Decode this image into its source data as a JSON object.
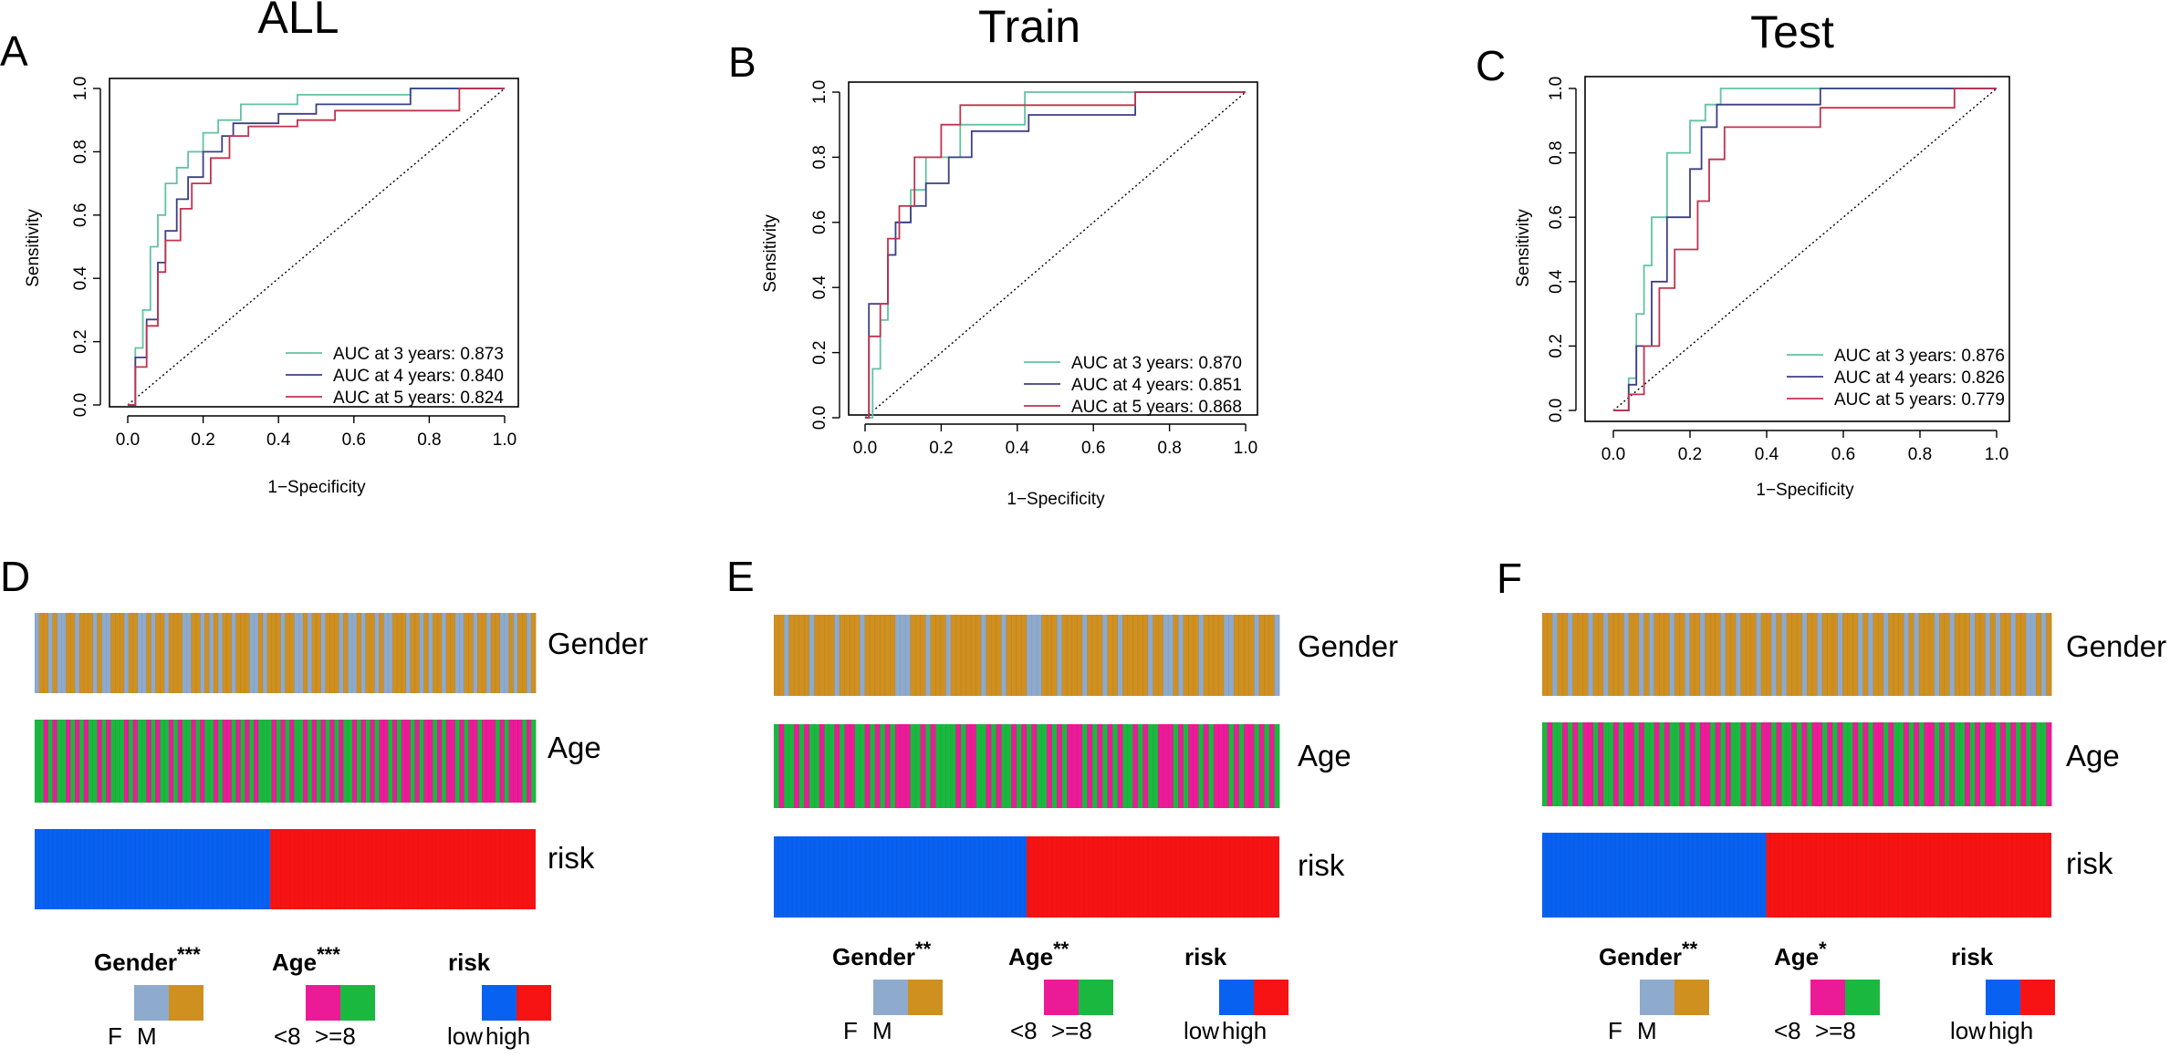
{
  "figure": {
    "colors": {
      "auc3": "#61C3A2",
      "auc4": "#3B3F87",
      "auc5": "#C1324E",
      "gender_F": "#8EAACC",
      "gender_M": "#CF9020",
      "age_lt8": "#EB1B98",
      "age_ge8": "#1BB83F",
      "risk_low": "#0961F2",
      "risk_high": "#F71313"
    }
  },
  "chart_data": [
    {
      "type": "line",
      "subtype": "time-dependent ROC",
      "panel_letter": "A",
      "title": "ALL",
      "xlabel": "1−Specificity",
      "ylabel": "Sensitivity",
      "xlim": [
        0,
        1
      ],
      "ylim": [
        0,
        1
      ],
      "x_ticks": [
        "0.0",
        "0.2",
        "0.4",
        "0.6",
        "0.8",
        "1.0"
      ],
      "y_ticks": [
        "0.0",
        "0.2",
        "0.4",
        "0.6",
        "0.8",
        "1.0"
      ],
      "reference_line": "diagonal dotted",
      "legend_position": "bottom-right",
      "legend": [
        "AUC at 3 years: 0.873",
        "AUC at 4 years: 0.840",
        "AUC at 5 years: 0.824"
      ],
      "series": [
        {
          "name": "AUC at 3 years",
          "auc": 0.873,
          "color_key": "auc3",
          "x": [
            0,
            0.02,
            0.02,
            0.04,
            0.04,
            0.06,
            0.06,
            0.08,
            0.08,
            0.1,
            0.1,
            0.13,
            0.13,
            0.16,
            0.16,
            0.2,
            0.2,
            0.24,
            0.24,
            0.3,
            0.3,
            0.45,
            0.45,
            0.75,
            0.75,
            1.0
          ],
          "y": [
            0,
            0,
            0.18,
            0.18,
            0.3,
            0.3,
            0.5,
            0.5,
            0.6,
            0.6,
            0.7,
            0.7,
            0.75,
            0.75,
            0.8,
            0.8,
            0.86,
            0.86,
            0.9,
            0.9,
            0.95,
            0.95,
            0.98,
            0.98,
            1.0,
            1.0
          ]
        },
        {
          "name": "AUC at 4 years",
          "auc": 0.84,
          "color_key": "auc4",
          "x": [
            0,
            0.02,
            0.02,
            0.05,
            0.05,
            0.08,
            0.08,
            0.1,
            0.1,
            0.13,
            0.13,
            0.16,
            0.16,
            0.2,
            0.2,
            0.25,
            0.25,
            0.28,
            0.28,
            0.4,
            0.4,
            0.5,
            0.5,
            0.75,
            0.75,
            1.0
          ],
          "y": [
            0,
            0,
            0.15,
            0.15,
            0.27,
            0.27,
            0.45,
            0.45,
            0.55,
            0.55,
            0.65,
            0.65,
            0.72,
            0.72,
            0.8,
            0.8,
            0.85,
            0.85,
            0.89,
            0.89,
            0.92,
            0.92,
            0.95,
            0.95,
            1.0,
            1.0
          ]
        },
        {
          "name": "AUC at 5 years",
          "auc": 0.824,
          "color_key": "auc5",
          "x": [
            0,
            0.02,
            0.02,
            0.05,
            0.05,
            0.08,
            0.08,
            0.1,
            0.1,
            0.14,
            0.14,
            0.17,
            0.17,
            0.22,
            0.22,
            0.27,
            0.27,
            0.32,
            0.32,
            0.45,
            0.45,
            0.55,
            0.55,
            0.88,
            0.88,
            1.0
          ],
          "y": [
            0,
            0,
            0.12,
            0.12,
            0.25,
            0.25,
            0.42,
            0.42,
            0.52,
            0.52,
            0.62,
            0.62,
            0.7,
            0.7,
            0.78,
            0.78,
            0.85,
            0.85,
            0.88,
            0.88,
            0.9,
            0.9,
            0.93,
            0.93,
            1.0,
            1.0
          ]
        }
      ]
    },
    {
      "type": "line",
      "subtype": "time-dependent ROC",
      "panel_letter": "B",
      "title": "Train",
      "xlabel": "1−Specificity",
      "ylabel": "Sensitivity",
      "xlim": [
        0,
        1
      ],
      "ylim": [
        0,
        1
      ],
      "x_ticks": [
        "0.0",
        "0.2",
        "0.4",
        "0.6",
        "0.8",
        "1.0"
      ],
      "y_ticks": [
        "0.0",
        "0.2",
        "0.4",
        "0.6",
        "0.8",
        "1.0"
      ],
      "reference_line": "diagonal dotted",
      "legend_position": "bottom-right",
      "legend": [
        "AUC at 3 years: 0.870",
        "AUC at 4 years: 0.851",
        "AUC at 5 years: 0.868"
      ],
      "series": [
        {
          "name": "AUC at 3 years",
          "auc": 0.87,
          "color_key": "auc3",
          "x": [
            0,
            0.02,
            0.02,
            0.04,
            0.04,
            0.06,
            0.06,
            0.08,
            0.08,
            0.12,
            0.12,
            0.16,
            0.16,
            0.25,
            0.25,
            0.42,
            0.42,
            1.0
          ],
          "y": [
            0,
            0,
            0.15,
            0.15,
            0.3,
            0.3,
            0.5,
            0.5,
            0.6,
            0.6,
            0.7,
            0.7,
            0.8,
            0.8,
            0.9,
            0.9,
            1.0,
            1.0
          ]
        },
        {
          "name": "AUC at 4 years",
          "auc": 0.851,
          "color_key": "auc4",
          "x": [
            0,
            0.01,
            0.01,
            0.06,
            0.06,
            0.08,
            0.08,
            0.12,
            0.12,
            0.16,
            0.16,
            0.22,
            0.22,
            0.28,
            0.28,
            0.43,
            0.43,
            0.71,
            0.71,
            1.0
          ],
          "y": [
            0,
            0,
            0.35,
            0.35,
            0.5,
            0.5,
            0.6,
            0.6,
            0.65,
            0.65,
            0.72,
            0.72,
            0.8,
            0.8,
            0.88,
            0.88,
            0.93,
            0.93,
            1.0,
            1.0
          ]
        },
        {
          "name": "AUC at 5 years",
          "auc": 0.868,
          "color_key": "auc5",
          "x": [
            0,
            0.01,
            0.01,
            0.04,
            0.04,
            0.06,
            0.06,
            0.09,
            0.09,
            0.13,
            0.13,
            0.2,
            0.2,
            0.25,
            0.25,
            0.71,
            0.71,
            1.0
          ],
          "y": [
            0,
            0,
            0.25,
            0.25,
            0.35,
            0.35,
            0.55,
            0.55,
            0.65,
            0.65,
            0.8,
            0.8,
            0.9,
            0.9,
            0.96,
            0.96,
            1.0,
            1.0
          ]
        }
      ]
    },
    {
      "type": "line",
      "subtype": "time-dependent ROC",
      "panel_letter": "C",
      "title": "Test",
      "xlabel": "1−Specificity",
      "ylabel": "Sensitivity",
      "xlim": [
        0,
        1
      ],
      "ylim": [
        0,
        1
      ],
      "x_ticks": [
        "0.0",
        "0.2",
        "0.4",
        "0.6",
        "0.8",
        "1.0"
      ],
      "y_ticks": [
        "0.0",
        "0.2",
        "0.4",
        "0.6",
        "0.8",
        "1.0"
      ],
      "reference_line": "diagonal dotted",
      "legend_position": "bottom-right",
      "legend": [
        "AUC at 3 years: 0.876",
        "AUC at 4 years: 0.826",
        "AUC at 5 years: 0.779"
      ],
      "series": [
        {
          "name": "AUC at 3 years",
          "auc": 0.876,
          "color_key": "auc3",
          "x": [
            0,
            0.04,
            0.04,
            0.06,
            0.06,
            0.08,
            0.08,
            0.1,
            0.1,
            0.14,
            0.14,
            0.2,
            0.2,
            0.24,
            0.24,
            0.28,
            0.28,
            1.0
          ],
          "y": [
            0,
            0,
            0.1,
            0.1,
            0.3,
            0.3,
            0.45,
            0.45,
            0.6,
            0.6,
            0.8,
            0.8,
            0.9,
            0.9,
            0.95,
            0.95,
            1.0,
            1.0
          ]
        },
        {
          "name": "AUC at 4 years",
          "auc": 0.826,
          "color_key": "auc4",
          "x": [
            0,
            0.04,
            0.04,
            0.06,
            0.06,
            0.1,
            0.1,
            0.14,
            0.14,
            0.2,
            0.2,
            0.23,
            0.23,
            0.27,
            0.27,
            0.54,
            0.54,
            1.0
          ],
          "y": [
            0,
            0,
            0.08,
            0.08,
            0.2,
            0.2,
            0.4,
            0.4,
            0.6,
            0.6,
            0.75,
            0.75,
            0.88,
            0.88,
            0.95,
            0.95,
            1.0,
            1.0
          ]
        },
        {
          "name": "AUC at 5 years",
          "auc": 0.779,
          "color_key": "auc5",
          "x": [
            0,
            0.04,
            0.04,
            0.08,
            0.08,
            0.12,
            0.12,
            0.16,
            0.16,
            0.22,
            0.22,
            0.25,
            0.25,
            0.29,
            0.29,
            0.54,
            0.54,
            0.89,
            0.89,
            1.0
          ],
          "y": [
            0,
            0,
            0.05,
            0.05,
            0.2,
            0.2,
            0.38,
            0.38,
            0.5,
            0.5,
            0.65,
            0.65,
            0.78,
            0.78,
            0.88,
            0.88,
            0.94,
            0.94,
            1.0,
            1.0
          ]
        }
      ]
    },
    {
      "type": "heatmap",
      "subtype": "clinical annotation tracks",
      "panel_letter": "D",
      "tracks": [
        {
          "label": "Gender",
          "color_keys": [
            "gender_F",
            "gender_M"
          ],
          "sequence": "0110100110111010011101100101101110011010101101110010111011001011011101001011010011101101011011001101101100101101"
        },
        {
          "label": "Age",
          "color_keys": [
            "age_lt8",
            "age_ge8"
          ],
          "sequence": "1101011010101101011101011010110101101011010010101011101010110101010101101010100101001010010100101001000101000101"
        },
        {
          "label": "risk",
          "color_keys": [
            "risk_low",
            "risk_high"
          ],
          "low_fraction": 0.47
        }
      ],
      "legend": [
        {
          "title": "Gender",
          "stars": "***",
          "labels": [
            "F",
            "M"
          ],
          "color_keys": [
            "gender_F",
            "gender_M"
          ]
        },
        {
          "title": "Age",
          "stars": "***",
          "labels": [
            "<8",
            ">=8"
          ],
          "color_keys": [
            "age_lt8",
            "age_ge8"
          ]
        },
        {
          "title": "risk",
          "stars": "",
          "labels": [
            "low",
            "high"
          ],
          "color_keys": [
            "risk_low",
            "risk_high"
          ]
        }
      ]
    },
    {
      "type": "heatmap",
      "subtype": "clinical annotation tracks",
      "panel_letter": "E",
      "tracks": [
        {
          "label": "Gender",
          "color_keys": [
            "gender_F",
            "gender_M"
          ],
          "sequence": "1101111011110111101111110001110111011111101110111100011101111011101101111101100101110111100111101110"
        },
        {
          "label": "Age",
          "color_keys": [
            "age_lt8",
            "age_ge8"
          ],
          "sequence": "1011010110110100110101010001101011110100110101101010110101000101010101101011000101001010001010010101"
        },
        {
          "label": "risk",
          "color_keys": [
            "risk_low",
            "risk_high"
          ],
          "low_fraction": 0.5
        }
      ],
      "legend": [
        {
          "title": "Gender",
          "stars": "**",
          "labels": [
            "F",
            "M"
          ],
          "color_keys": [
            "gender_F",
            "gender_M"
          ]
        },
        {
          "title": "Age",
          "stars": "**",
          "labels": [
            "<8",
            ">=8"
          ],
          "color_keys": [
            "age_lt8",
            "age_ge8"
          ]
        },
        {
          "title": "risk",
          "stars": "",
          "labels": [
            "low",
            "high"
          ],
          "color_keys": [
            "risk_low",
            "risk_high"
          ]
        }
      ]
    },
    {
      "type": "heatmap",
      "subtype": "clinical annotation tracks",
      "panel_letter": "F",
      "tracks": [
        {
          "label": "Gender",
          "color_keys": [
            "gender_F",
            "gender_M"
          ],
          "sequence": "1101101110110111011010111011011011101101110110101110110111011101011011101011101101110110101101100101"
        },
        {
          "label": "Age",
          "color_keys": [
            "age_lt8",
            "age_ge8"
          ],
          "sequence": "1011010100101101001011010110101001010110101001011010100101011010100101101010010101101010010101010110"
        },
        {
          "label": "risk",
          "color_keys": [
            "risk_low",
            "risk_high"
          ],
          "low_fraction": 0.44
        }
      ],
      "legend": [
        {
          "title": "Gender",
          "stars": "**",
          "labels": [
            "F",
            "M"
          ],
          "color_keys": [
            "gender_F",
            "gender_M"
          ]
        },
        {
          "title": "Age",
          "stars": "*",
          "labels": [
            "<8",
            ">=8"
          ],
          "color_keys": [
            "age_lt8",
            "age_ge8"
          ]
        },
        {
          "title": "risk",
          "stars": "",
          "labels": [
            "low",
            "high"
          ],
          "color_keys": [
            "risk_low",
            "risk_high"
          ]
        }
      ]
    }
  ]
}
